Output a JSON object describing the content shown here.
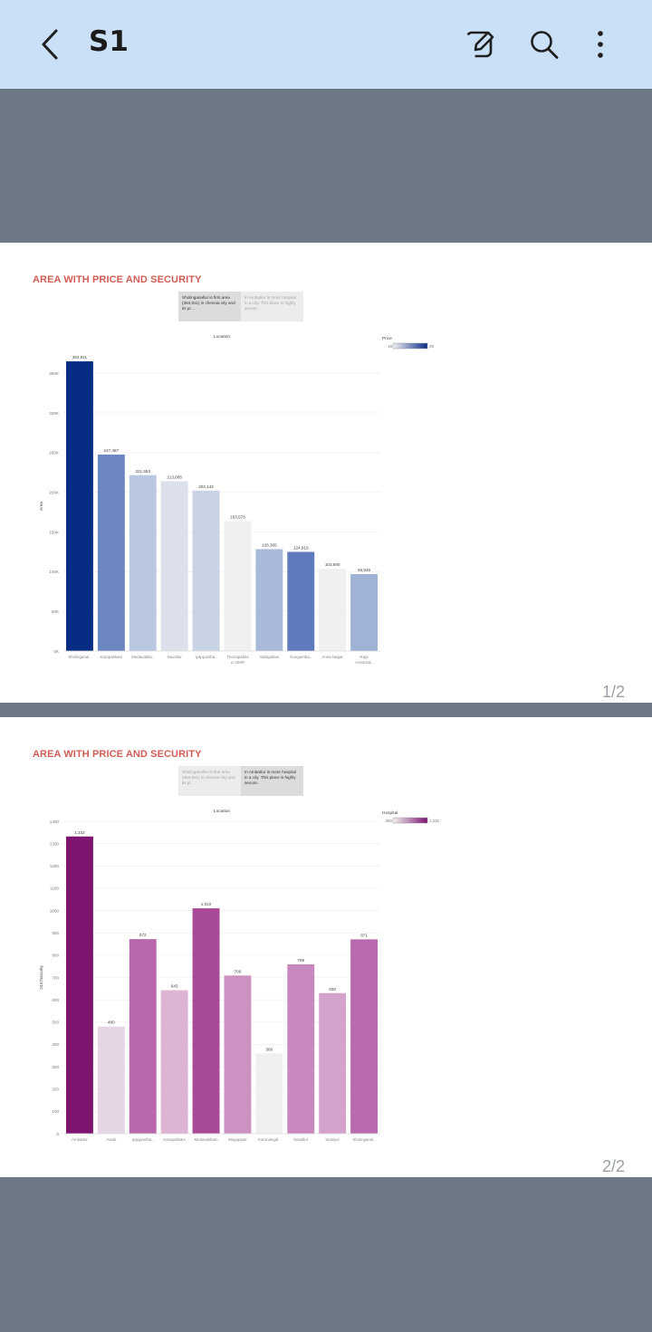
{
  "appbar": {
    "title": "S1",
    "icons": [
      "back-arrow-icon",
      "edit-icon",
      "search-icon",
      "more-vert-icon"
    ]
  },
  "pages": [
    {
      "title": "AREA WITH PRICE AND SECURITY",
      "page_label": "1/2",
      "captions": [
        "Sholinganallur is first area (364,911) in chennai city and its pr…",
        "In Ambattur is more hospital in a city. This place is highly secure.."
      ],
      "selected_caption": 0
    },
    {
      "title": "AREA WITH PRICE AND SECURITY",
      "page_label": "2/2",
      "captions": [
        "Sholinganallur is first area (364,911) in chennai city and its pr…",
        "In Ambattur is more hospital in a city. This place is highly secure.."
      ],
      "selected_caption": 1
    }
  ],
  "chart_data": [
    {
      "type": "bar",
      "title": "Location",
      "ylabel": "Area",
      "ylim": [
        0,
        365000
      ],
      "yticks": [
        0,
        50000,
        100000,
        150000,
        200000,
        250000,
        300000,
        350000
      ],
      "ytick_labels": [
        "0K",
        "50K",
        "100K",
        "150K",
        "200K",
        "250K",
        "300K",
        "350K"
      ],
      "categories": [
        "Sholinganal..",
        "Karapakkam",
        "Medavakka..",
        "Navallur",
        "Iyappantha..",
        "Thoraipakka m OMR",
        "Vadapalani",
        "Nungamba..",
        "Anna Nagar",
        "Raja Annamal.."
      ],
      "values": [
        364911,
        247487,
        221553,
        213885,
        202142,
        163578,
        128365,
        124919,
        103680,
        96946
      ],
      "value_labels": [
        "364,911",
        "247,487",
        "221,553",
        "213,885",
        "202,142",
        "163,578",
        "128,365",
        "124,919",
        "103,680",
        "96,946"
      ],
      "colors": [
        "#062c84",
        "#6c86c0",
        "#b9c7e1",
        "#dbe0ea",
        "#c8d3e6",
        "#f0f0f0",
        "#a9b9da",
        "#5f7bbd",
        "#f0f0f0",
        "#a0b3d6"
      ],
      "legend": {
        "title": "Price",
        "min_label": "18",
        "max_label": "28",
        "color_from": "#f2f2f2",
        "color_to": "#062c84"
      }
    },
    {
      "type": "bar",
      "title": "Location",
      "ylabel": "24X7security",
      "ylim": [
        0,
        1400
      ],
      "yticks": [
        0,
        100,
        200,
        300,
        400,
        500,
        600,
        700,
        800,
        900,
        1000,
        1100,
        1200,
        1300,
        1400
      ],
      "ytick_labels": [
        "0",
        "100",
        "200",
        "300",
        "400",
        "500",
        "600",
        "700",
        "800",
        "900",
        "1000",
        "1100",
        "1200",
        "1300",
        "1400"
      ],
      "categories": [
        "Ambattur",
        "Avadi",
        "Iyappantha..",
        "Karapakkam",
        "Medavakkam",
        "Mogappair",
        "Kanmangal..",
        "Navallur",
        "Selaiyur",
        "Sholinganal.."
      ],
      "values": [
        1332,
        480,
        872,
        643,
        1010,
        709,
        360,
        759,
        630,
        871
      ],
      "value_labels": [
        "1,332",
        "480",
        "872",
        "643",
        "1,010",
        "709",
        "360",
        "759",
        "630",
        "871"
      ],
      "colors": [
        "#7c1470",
        "#e6d5e5",
        "#b967ad",
        "#ddb4d4",
        "#a94a99",
        "#cc92c2",
        "#f0f0f0",
        "#c887bf",
        "#d5a2cc",
        "#b969ad"
      ],
      "legend": {
        "title": "Hospital",
        "min_label": "360",
        "max_label": "1,332",
        "color_from": "#f2f2f2",
        "color_to": "#7c1470"
      }
    }
  ]
}
